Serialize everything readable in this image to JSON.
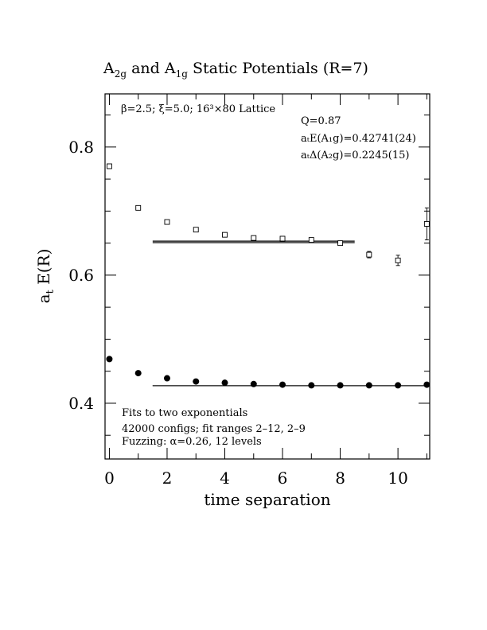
{
  "chart_data": {
    "type": "scatter",
    "title": "A2g and A1g Static Potentials (R=7)",
    "title_parts": {
      "a": "A",
      "a_sub": "2g",
      "and": " and ",
      "b": "A",
      "b_sub": "1g",
      "rest": " Static Potentials (R=7)"
    },
    "xlabel": "time separation",
    "ylabel": "a",
    "ylabel_sub": "t",
    "ylabel_rest": " E(R)",
    "xlim": [
      -0.15,
      11.1
    ],
    "ylim": [
      0.313,
      0.883
    ],
    "x_ticks": [
      0,
      2,
      4,
      6,
      8,
      10
    ],
    "x_tick_labels": [
      "0",
      "2",
      "4",
      "6",
      "8",
      "10"
    ],
    "y_ticks": [
      0.4,
      0.6,
      0.8
    ],
    "y_tick_labels": [
      "0.4",
      "0.6",
      "0.8"
    ],
    "annotations": {
      "lattice": "β=2.5; ξ=5.0; 16³×80 Lattice",
      "q": "Q=0.87",
      "e_a1g": "aₜE(A₁g)=0.42741(24)",
      "delta_a2g": "aₜΔ(A₂g)=0.2245(15)",
      "fits": "Fits to two exponentials",
      "configs": "42000 configs; fit ranges 2–12, 2–9",
      "fuzzing": "Fuzzing: α=0.26, 12 levels"
    },
    "series": [
      {
        "name": "A2g",
        "marker": "open-square",
        "x": [
          0,
          1,
          2,
          3,
          4,
          5,
          6,
          7,
          8,
          9,
          10,
          11
        ],
        "y": [
          0.77,
          0.705,
          0.683,
          0.671,
          0.663,
          0.658,
          0.657,
          0.655,
          0.65,
          0.632,
          0.623,
          0.68
        ],
        "err": [
          0,
          0,
          0,
          0.001,
          0.001,
          0.002,
          0.002,
          0.003,
          0.003,
          0.005,
          0.008,
          0.025
        ]
      },
      {
        "name": "A1g",
        "marker": "filled-circle",
        "x": [
          0,
          1,
          2,
          3,
          4,
          5,
          6,
          7,
          8,
          9,
          10,
          11
        ],
        "y": [
          0.469,
          0.447,
          0.439,
          0.434,
          0.432,
          0.43,
          0.429,
          0.428,
          0.428,
          0.428,
          0.428,
          0.429
        ],
        "err": [
          0,
          0,
          0,
          0,
          0,
          0,
          0,
          0,
          0,
          0,
          0,
          0
        ]
      }
    ],
    "fit_lines": [
      {
        "name": "A2g fit",
        "x": [
          1.5,
          8.5
        ],
        "y_center": 0.6519,
        "y_band": [
          0.6504,
          0.6534
        ]
      },
      {
        "name": "A1g fit",
        "x": [
          1.5,
          11.1
        ],
        "y_center": 0.42741,
        "y_band": [
          0.42717,
          0.42765
        ]
      }
    ]
  }
}
